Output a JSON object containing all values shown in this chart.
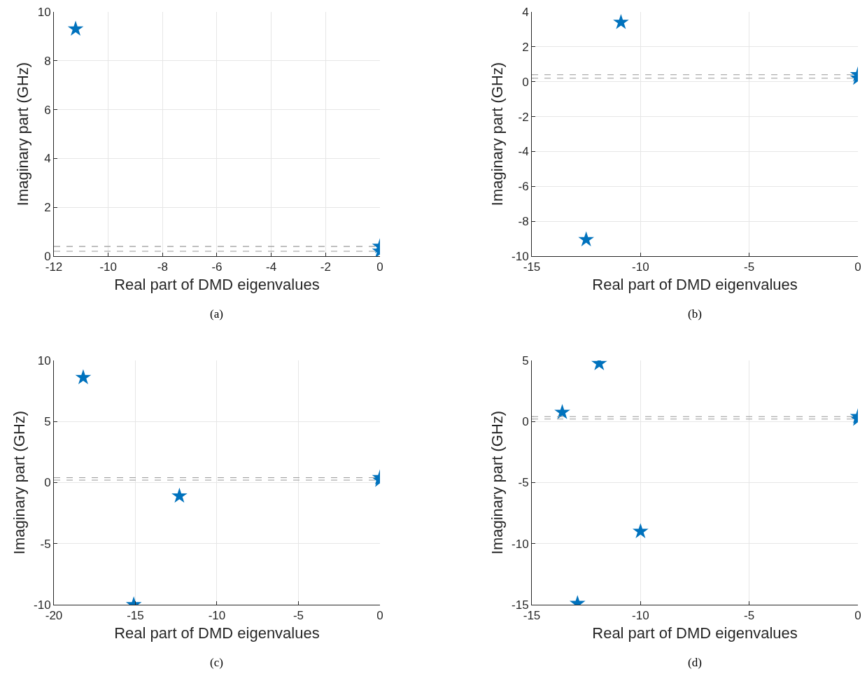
{
  "chart_data": [
    {
      "type": "scatter",
      "xlabel": "Real part of DMD eigenvalues",
      "ylabel": "Imaginary part (GHz)",
      "annotations": [
        "(a)"
      ],
      "marker": "star",
      "grid": true,
      "series": [
        {
          "color": "#0072bd",
          "x": [
            -11.2,
            0,
            0
          ],
          "values": [
            9.3,
            0.4,
            0.2
          ]
        }
      ],
      "xlim": [
        -12,
        0
      ],
      "xticks": [
        -12,
        -10,
        -8,
        -6,
        -4,
        -2,
        0
      ],
      "ylim": [
        0,
        10
      ],
      "yticks": [
        0,
        2,
        4,
        6,
        8,
        10
      ],
      "ref_lines": [
        {
          "axis": "y",
          "value": 0.4,
          "color": "#999999",
          "line_style": "dashed"
        },
        {
          "axis": "y",
          "value": 0.2,
          "color": "#999999",
          "line_style": "dashed"
        }
      ]
    },
    {
      "type": "scatter",
      "xlabel": "Real part of DMD eigenvalues",
      "ylabel": "Imaginary part (GHz)",
      "annotations": [
        "(b)"
      ],
      "marker": "star",
      "grid": true,
      "series": [
        {
          "color": "#0072bd",
          "x": [
            -10.9,
            -12.5,
            0,
            0
          ],
          "values": [
            3.4,
            -9.05,
            0.4,
            0.2
          ]
        }
      ],
      "xlim": [
        -15,
        0
      ],
      "xticks": [
        -15,
        -10,
        -5,
        0
      ],
      "ylim": [
        -10,
        4
      ],
      "yticks": [
        -10,
        -8,
        -6,
        -4,
        -2,
        0,
        2,
        4
      ],
      "ref_lines": [
        {
          "axis": "y",
          "value": 0.4,
          "color": "#999999",
          "line_style": "dashed"
        },
        {
          "axis": "y",
          "value": 0.2,
          "color": "#999999",
          "line_style": "dashed"
        }
      ]
    },
    {
      "type": "scatter",
      "xlabel": "Real part of DMD eigenvalues",
      "ylabel": "Imaginary part (GHz)",
      "annotations": [
        "(c)"
      ],
      "marker": "star",
      "grid": true,
      "series": [
        {
          "color": "#0072bd",
          "x": [
            -18.2,
            -12.3,
            -15.1,
            0,
            0
          ],
          "values": [
            8.6,
            -1.1,
            -10,
            0.4,
            0.2
          ]
        }
      ],
      "xlim": [
        -20,
        0
      ],
      "xticks": [
        -20,
        -15,
        -10,
        -5,
        0
      ],
      "ylim": [
        -10,
        10
      ],
      "yticks": [
        -10,
        -5,
        0,
        5,
        10
      ],
      "ref_lines": [
        {
          "axis": "y",
          "value": 0.4,
          "color": "#999999",
          "line_style": "dashed"
        },
        {
          "axis": "y",
          "value": 0.2,
          "color": "#999999",
          "line_style": "dashed"
        }
      ]
    },
    {
      "type": "scatter",
      "xlabel": "Real part of DMD eigenvalues",
      "ylabel": "Imaginary part (GHz)",
      "annotations": [
        "(d)"
      ],
      "marker": "star",
      "grid": true,
      "series": [
        {
          "color": "#0072bd",
          "x": [
            -13.6,
            -11.9,
            -10.0,
            -12.9,
            0,
            0
          ],
          "values": [
            0.75,
            4.75,
            -9.0,
            -14.9,
            0.4,
            0.2
          ]
        }
      ],
      "xlim": [
        -15,
        0
      ],
      "xticks": [
        -15,
        -10,
        -5,
        0
      ],
      "ylim": [
        -15,
        5
      ],
      "yticks": [
        -15,
        -10,
        -5,
        0,
        5
      ],
      "ref_lines": [
        {
          "axis": "y",
          "value": 0.4,
          "color": "#999999",
          "line_style": "dashed"
        },
        {
          "axis": "y",
          "value": 0.2,
          "color": "#999999",
          "line_style": "dashed"
        }
      ]
    }
  ]
}
